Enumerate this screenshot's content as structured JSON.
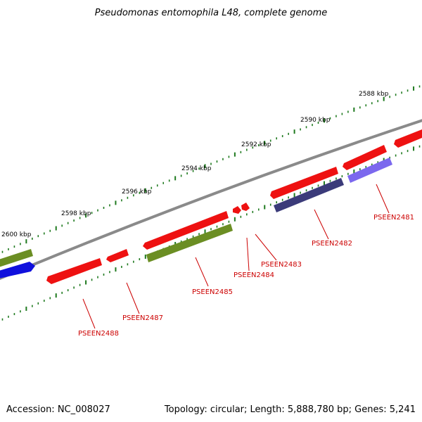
{
  "title": "Pseudomonas entomophila L48, complete genome",
  "footer": {
    "accession": "Accession: NC_008027",
    "summary": "Topology: circular; Length: 5,888,780 bp; Genes: 5,241"
  },
  "colors": {
    "backbone": "#8a8a8a",
    "tick": "#1f7a1f",
    "gene_red": "#ee1111",
    "gene_olive": "#6b8e23",
    "gene_blue": "#1010dd",
    "gene_navy": "#3b3b7a",
    "gene_lavender": "#7b68ee",
    "label": "#cc0000"
  },
  "scale_ticks": [
    "2588 kbp",
    "2590 kbp",
    "2592 kbp",
    "2594 kbp",
    "2596 kbp",
    "2598 kbp",
    "2600 kbp"
  ],
  "genes": [
    {
      "label": "PSEEN2481",
      "color": "gene_red"
    },
    {
      "label": "PSEEN2482",
      "color": "gene_navy"
    },
    {
      "label": "PSEEN2483",
      "color": "gene_red"
    },
    {
      "label": "PSEEN2484",
      "color": "gene_red"
    },
    {
      "label": "PSEEN2485",
      "color": "gene_olive"
    },
    {
      "label": "PSEEN2487",
      "color": "gene_red"
    },
    {
      "label": "PSEEN2488",
      "color": "gene_red"
    }
  ]
}
